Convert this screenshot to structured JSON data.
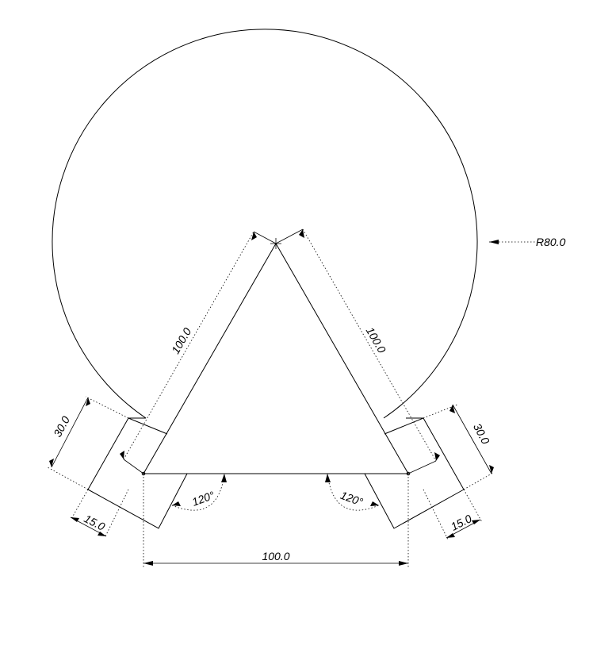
{
  "drawing": {
    "radius_label": "R80.0",
    "left_side_label": "100.0",
    "right_side_label": "100.0",
    "base_label": "100.0",
    "left_angle_label": "120°",
    "right_angle_label": "120°",
    "left_slot_length_label": "30.0",
    "right_slot_length_label": "30.0",
    "left_slot_width_label": "15.0",
    "right_slot_width_label": "15.0"
  }
}
